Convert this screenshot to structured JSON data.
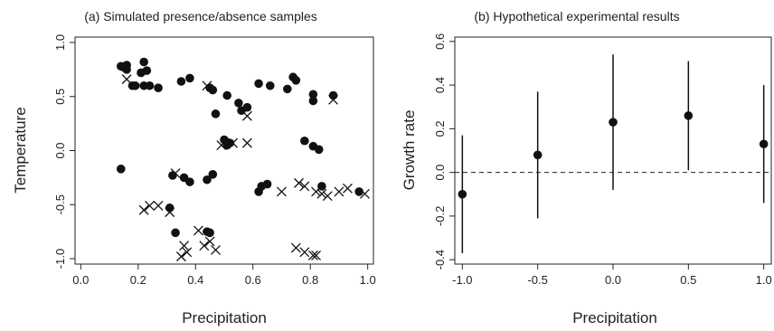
{
  "chart_data": [
    {
      "type": "scatter",
      "title": "(a) Simulated presence/absence samples",
      "xlabel": "Precipitation",
      "ylabel": "Temperature",
      "xlim": [
        -0.02,
        1.02
      ],
      "ylim": [
        -1.05,
        1.05
      ],
      "xticks": [
        "0.0",
        "0.2",
        "0.4",
        "0.6",
        "0.8",
        "1.0"
      ],
      "xtick_values": [
        0.0,
        0.2,
        0.4,
        0.6,
        0.8,
        1.0
      ],
      "yticks": [
        "-1.0",
        "-0.5",
        "0.0",
        "0.5",
        "1.0"
      ],
      "ytick_values": [
        -1.0,
        -0.5,
        0.0,
        0.5,
        1.0
      ],
      "grid": false,
      "series": [
        {
          "marker": "circle",
          "points": [
            [
              0.14,
              0.78
            ],
            [
              0.15,
              0.77
            ],
            [
              0.16,
              0.79
            ],
            [
              0.16,
              0.75
            ],
            [
              0.18,
              0.6
            ],
            [
              0.19,
              0.6
            ],
            [
              0.21,
              0.72
            ],
            [
              0.22,
              0.82
            ],
            [
              0.22,
              0.6
            ],
            [
              0.23,
              0.74
            ],
            [
              0.24,
              0.6
            ],
            [
              0.27,
              0.58
            ],
            [
              0.35,
              0.64
            ],
            [
              0.38,
              0.67
            ],
            [
              0.45,
              0.58
            ],
            [
              0.46,
              0.56
            ],
            [
              0.47,
              0.34
            ],
            [
              0.51,
              0.51
            ],
            [
              0.55,
              0.44
            ],
            [
              0.56,
              0.37
            ],
            [
              0.58,
              0.4
            ],
            [
              0.62,
              0.62
            ],
            [
              0.66,
              0.6
            ],
            [
              0.72,
              0.57
            ],
            [
              0.74,
              0.68
            ],
            [
              0.75,
              0.65
            ],
            [
              0.81,
              0.52
            ],
            [
              0.81,
              0.46
            ],
            [
              0.88,
              0.51
            ],
            [
              0.14,
              -0.17
            ],
            [
              0.32,
              -0.23
            ],
            [
              0.36,
              -0.25
            ],
            [
              0.38,
              -0.29
            ],
            [
              0.44,
              -0.27
            ],
            [
              0.46,
              -0.22
            ],
            [
              0.5,
              0.1
            ],
            [
              0.51,
              0.05
            ],
            [
              0.52,
              0.07
            ],
            [
              0.78,
              0.09
            ],
            [
              0.81,
              0.04
            ],
            [
              0.83,
              0.01
            ],
            [
              0.84,
              -0.33
            ],
            [
              0.62,
              -0.38
            ],
            [
              0.63,
              -0.33
            ],
            [
              0.65,
              -0.31
            ],
            [
              0.97,
              -0.38
            ],
            [
              0.33,
              -0.76
            ],
            [
              0.31,
              -0.53
            ],
            [
              0.44,
              -0.75
            ],
            [
              0.45,
              -0.76
            ]
          ]
        },
        {
          "marker": "cross",
          "points": [
            [
              0.16,
              0.66
            ],
            [
              0.44,
              0.6
            ],
            [
              0.58,
              0.32
            ],
            [
              0.88,
              0.47
            ],
            [
              0.53,
              0.07
            ],
            [
              0.58,
              0.07
            ],
            [
              0.33,
              -0.21
            ],
            [
              0.49,
              0.05
            ],
            [
              0.22,
              -0.55
            ],
            [
              0.24,
              -0.51
            ],
            [
              0.27,
              -0.51
            ],
            [
              0.31,
              -0.57
            ],
            [
              0.7,
              -0.38
            ],
            [
              0.76,
              -0.3
            ],
            [
              0.78,
              -0.33
            ],
            [
              0.82,
              -0.38
            ],
            [
              0.84,
              -0.4
            ],
            [
              0.86,
              -0.42
            ],
            [
              0.9,
              -0.38
            ],
            [
              0.93,
              -0.35
            ],
            [
              0.99,
              -0.4
            ],
            [
              0.36,
              -0.88
            ],
            [
              0.35,
              -0.98
            ],
            [
              0.41,
              -0.74
            ],
            [
              0.43,
              -0.88
            ],
            [
              0.45,
              -0.84
            ],
            [
              0.47,
              -0.92
            ],
            [
              0.75,
              -0.9
            ],
            [
              0.78,
              -0.94
            ],
            [
              0.81,
              -0.97
            ],
            [
              0.82,
              -0.97
            ],
            [
              0.37,
              -0.94
            ]
          ]
        }
      ]
    },
    {
      "type": "scatter",
      "title": "(b) Hypothetical experimental results",
      "xlabel": "Precipitation",
      "ylabel": "Growth rate",
      "xlim": [
        -1.05,
        1.05
      ],
      "ylim": [
        -0.42,
        0.62
      ],
      "xticks": [
        "-1.0",
        "-0.5",
        "0.0",
        "0.5",
        "1.0"
      ],
      "xtick_values": [
        -1.0,
        -0.5,
        0.0,
        0.5,
        1.0
      ],
      "yticks": [
        "-0.4",
        "-0.2",
        "0.0",
        "0.2",
        "0.4",
        "0.6"
      ],
      "ytick_values": [
        -0.4,
        -0.2,
        0.0,
        0.2,
        0.4,
        0.6
      ],
      "grid": false,
      "reference_line": {
        "y": 0.0,
        "style": "dashed"
      },
      "points": [
        {
          "x": -1.0,
          "y": -0.1,
          "lower": -0.37,
          "upper": 0.17
        },
        {
          "x": -0.5,
          "y": 0.08,
          "lower": -0.21,
          "upper": 0.37
        },
        {
          "x": 0.0,
          "y": 0.23,
          "lower": -0.08,
          "upper": 0.54
        },
        {
          "x": 0.5,
          "y": 0.26,
          "lower": 0.01,
          "upper": 0.51
        },
        {
          "x": 1.0,
          "y": 0.13,
          "lower": -0.14,
          "upper": 0.4
        }
      ]
    }
  ]
}
